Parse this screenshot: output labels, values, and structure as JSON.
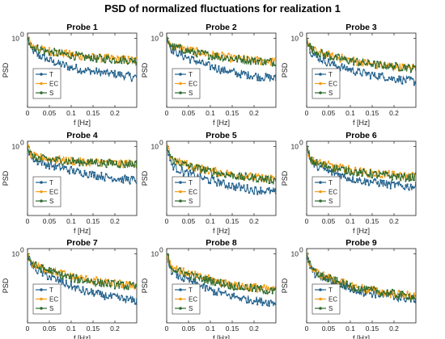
{
  "figure": {
    "title": "PSD of normalized fluctuations for realization 1"
  },
  "chart_data": {
    "type": "line",
    "layout": "3x3 grid",
    "y_scale": "log",
    "xlabel": "f [Hz]",
    "ylabel": "PSD",
    "xlim": [
      0,
      0.25
    ],
    "xticks": [
      "0",
      "0.05",
      "0.1",
      "0.15",
      "0.2"
    ],
    "ylim": [
      0.03,
      1.3
    ],
    "ytick_label": "10",
    "ytick_exponent": "0",
    "legend": {
      "position": "lower-left",
      "entries": [
        "T",
        "EC",
        "S"
      ]
    },
    "colors": {
      "T": "#1f5f8b",
      "EC": "#f39c12",
      "S": "#2e6b2e"
    },
    "frequency_hz": [
      0,
      0.01,
      0.02,
      0.04,
      0.06,
      0.08,
      0.1,
      0.12,
      0.14,
      0.16,
      0.18,
      0.2,
      0.22,
      0.24,
      0.25
    ],
    "panels": [
      {
        "title": "Probe 1",
        "series": [
          {
            "name": "T",
            "values": [
              1.0,
              0.55,
              0.45,
              0.36,
              0.3,
              0.26,
              0.23,
              0.21,
              0.19,
              0.18,
              0.17,
              0.16,
              0.15,
              0.14,
              0.14
            ]
          },
          {
            "name": "EC",
            "values": [
              1.0,
              0.7,
              0.62,
              0.55,
              0.5,
              0.46,
              0.43,
              0.41,
              0.39,
              0.37,
              0.36,
              0.35,
              0.34,
              0.33,
              0.33
            ]
          },
          {
            "name": "S",
            "values": [
              1.0,
              0.68,
              0.6,
              0.53,
              0.48,
              0.45,
              0.42,
              0.4,
              0.38,
              0.36,
              0.35,
              0.34,
              0.33,
              0.32,
              0.32
            ]
          }
        ]
      },
      {
        "title": "Probe 2",
        "series": [
          {
            "name": "T",
            "values": [
              1.0,
              0.6,
              0.5,
              0.4,
              0.33,
              0.28,
              0.24,
              0.21,
              0.19,
              0.17,
              0.16,
              0.15,
              0.14,
              0.13,
              0.13
            ]
          },
          {
            "name": "EC",
            "values": [
              1.0,
              0.72,
              0.65,
              0.58,
              0.52,
              0.48,
              0.44,
              0.41,
              0.38,
              0.36,
              0.34,
              0.33,
              0.32,
              0.31,
              0.31
            ]
          },
          {
            "name": "S",
            "values": [
              1.0,
              0.7,
              0.63,
              0.56,
              0.5,
              0.46,
              0.42,
              0.39,
              0.37,
              0.35,
              0.33,
              0.32,
              0.31,
              0.3,
              0.3
            ]
          }
        ]
      },
      {
        "title": "Probe 3",
        "series": [
          {
            "name": "T",
            "values": [
              1.0,
              0.5,
              0.4,
              0.32,
              0.27,
              0.23,
              0.2,
              0.18,
              0.16,
              0.15,
              0.14,
              0.13,
              0.12,
              0.115,
              0.11
            ]
          },
          {
            "name": "EC",
            "values": [
              1.0,
              0.6,
              0.52,
              0.45,
              0.4,
              0.36,
              0.33,
              0.3,
              0.28,
              0.26,
              0.25,
              0.24,
              0.23,
              0.22,
              0.22
            ]
          },
          {
            "name": "S",
            "values": [
              1.0,
              0.58,
              0.5,
              0.44,
              0.39,
              0.35,
              0.32,
              0.3,
              0.28,
              0.26,
              0.25,
              0.24,
              0.23,
              0.22,
              0.22
            ]
          }
        ]
      },
      {
        "title": "Probe 4",
        "series": [
          {
            "name": "T",
            "values": [
              1.0,
              0.55,
              0.48,
              0.42,
              0.37,
              0.33,
              0.3,
              0.27,
              0.25,
              0.23,
              0.21,
              0.2,
              0.19,
              0.18,
              0.18
            ]
          },
          {
            "name": "EC",
            "values": [
              1.0,
              0.62,
              0.58,
              0.55,
              0.52,
              0.5,
              0.48,
              0.47,
              0.46,
              0.45,
              0.44,
              0.43,
              0.42,
              0.42,
              0.42
            ]
          },
          {
            "name": "S",
            "values": [
              1.0,
              0.6,
              0.56,
              0.53,
              0.5,
              0.48,
              0.47,
              0.46,
              0.45,
              0.44,
              0.43,
              0.42,
              0.41,
              0.41,
              0.41
            ]
          }
        ]
      },
      {
        "title": "Probe 5",
        "series": [
          {
            "name": "T",
            "values": [
              1.0,
              0.42,
              0.34,
              0.27,
              0.23,
              0.2,
              0.18,
              0.16,
              0.14,
              0.13,
              0.12,
              0.11,
              0.105,
              0.1,
              0.1
            ]
          },
          {
            "name": "EC",
            "values": [
              1.0,
              0.58,
              0.5,
              0.42,
              0.36,
              0.32,
              0.29,
              0.27,
              0.25,
              0.23,
              0.22,
              0.21,
              0.2,
              0.19,
              0.19
            ]
          },
          {
            "name": "S",
            "values": [
              1.0,
              0.55,
              0.47,
              0.4,
              0.35,
              0.31,
              0.28,
              0.26,
              0.24,
              0.22,
              0.21,
              0.2,
              0.19,
              0.18,
              0.18
            ]
          }
        ]
      },
      {
        "title": "Probe 6",
        "series": [
          {
            "name": "T",
            "values": [
              1.0,
              0.45,
              0.38,
              0.31,
              0.26,
              0.23,
              0.2,
              0.18,
              0.17,
              0.16,
              0.15,
              0.14,
              0.13,
              0.13,
              0.13
            ]
          },
          {
            "name": "EC",
            "values": [
              1.0,
              0.5,
              0.45,
              0.4,
              0.36,
              0.33,
              0.3,
              0.28,
              0.26,
              0.25,
              0.24,
              0.23,
              0.22,
              0.22,
              0.22
            ]
          },
          {
            "name": "S",
            "values": [
              1.0,
              0.48,
              0.43,
              0.38,
              0.34,
              0.31,
              0.29,
              0.27,
              0.25,
              0.24,
              0.23,
              0.22,
              0.21,
              0.21,
              0.21
            ]
          }
        ]
      },
      {
        "title": "Probe 7",
        "series": [
          {
            "name": "T",
            "values": [
              1.0,
              0.55,
              0.45,
              0.35,
              0.28,
              0.23,
              0.19,
              0.16,
              0.14,
              0.13,
              0.12,
              0.11,
              0.1,
              0.095,
              0.09
            ]
          },
          {
            "name": "EC",
            "values": [
              1.0,
              0.62,
              0.55,
              0.47,
              0.41,
              0.36,
              0.32,
              0.29,
              0.27,
              0.25,
              0.23,
              0.22,
              0.21,
              0.2,
              0.2
            ]
          },
          {
            "name": "S",
            "values": [
              1.0,
              0.6,
              0.53,
              0.45,
              0.39,
              0.34,
              0.3,
              0.27,
              0.25,
              0.23,
              0.22,
              0.21,
              0.2,
              0.19,
              0.19
            ]
          }
        ]
      },
      {
        "title": "Probe 8",
        "series": [
          {
            "name": "T",
            "values": [
              1.0,
              0.45,
              0.36,
              0.28,
              0.23,
              0.19,
              0.16,
              0.14,
              0.12,
              0.11,
              0.1,
              0.095,
              0.09,
              0.085,
              0.08
            ]
          },
          {
            "name": "EC",
            "values": [
              1.0,
              0.55,
              0.47,
              0.39,
              0.34,
              0.3,
              0.27,
              0.24,
              0.22,
              0.2,
              0.19,
              0.18,
              0.17,
              0.16,
              0.16
            ]
          },
          {
            "name": "S",
            "values": [
              1.0,
              0.52,
              0.45,
              0.37,
              0.32,
              0.28,
              0.25,
              0.23,
              0.21,
              0.19,
              0.18,
              0.17,
              0.16,
              0.15,
              0.15
            ]
          }
        ]
      },
      {
        "title": "Probe 9",
        "series": [
          {
            "name": "T",
            "values": [
              1.0,
              0.45,
              0.36,
              0.29,
              0.24,
              0.2,
              0.17,
              0.15,
              0.14,
              0.13,
              0.12,
              0.11,
              0.105,
              0.1,
              0.1
            ]
          },
          {
            "name": "EC",
            "values": [
              1.0,
              0.48,
              0.4,
              0.32,
              0.27,
              0.23,
              0.2,
              0.18,
              0.16,
              0.15,
              0.14,
              0.13,
              0.125,
              0.12,
              0.12
            ]
          },
          {
            "name": "S",
            "values": [
              1.0,
              0.47,
              0.39,
              0.31,
              0.26,
              0.22,
              0.19,
              0.17,
              0.16,
              0.15,
              0.14,
              0.13,
              0.12,
              0.115,
              0.11
            ]
          }
        ]
      }
    ]
  }
}
